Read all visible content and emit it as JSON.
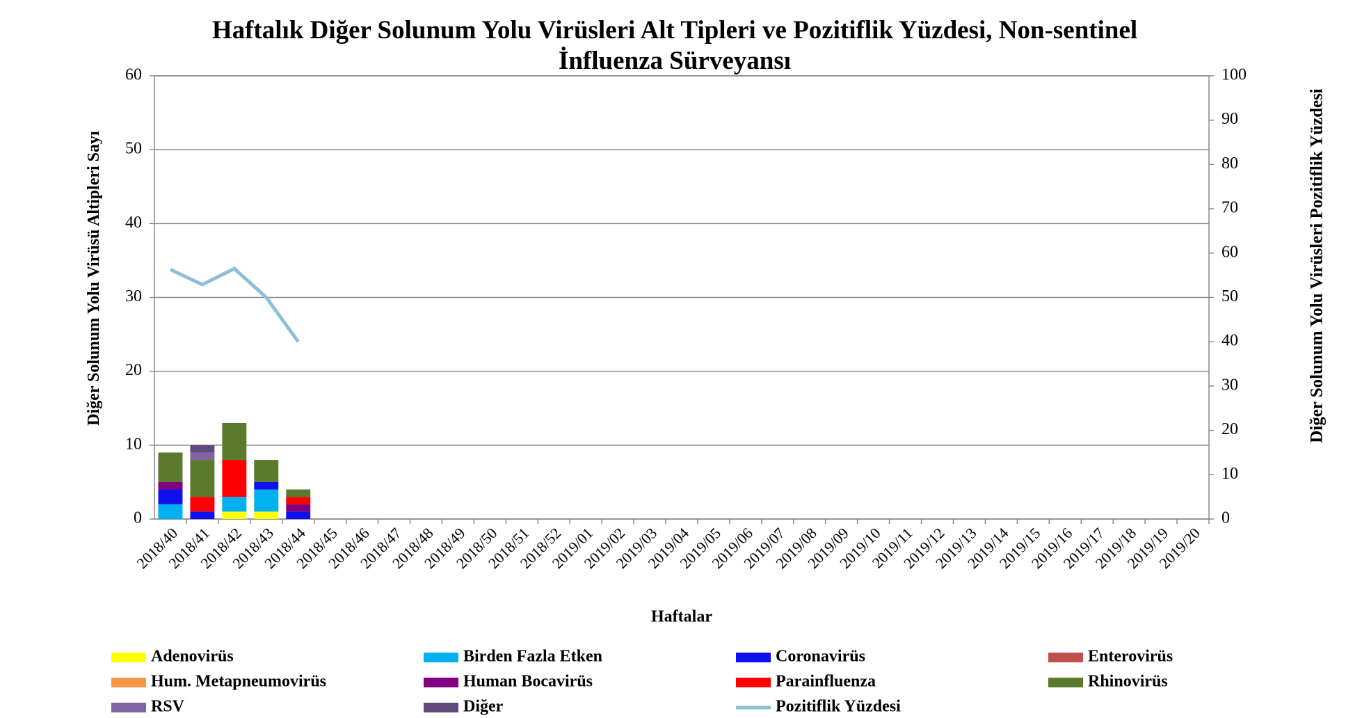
{
  "chart_data": {
    "type": "bar",
    "title": "Haftalık Diğer Solunum Yolu Virüsleri Alt Tipleri ve Pozitiflik Yüzdesi, Non-sentinel İnfluenza Sürveyansı",
    "xlabel": "Haftalar",
    "ylabel": "Diğer Solunum Yolu Virüsü Altipleri Sayı",
    "y2label": "Diğer Solunum Yolu Virüsleri Pozitiflik Yüzdesi",
    "stacked": true,
    "grid": true,
    "categories": [
      "2018/40",
      "2018/41",
      "2018/42",
      "2018/43",
      "2018/44",
      "2018/45",
      "2018/46",
      "2018/47",
      "2018/48",
      "2018/49",
      "2018/50",
      "2018/51",
      "2018/52",
      "2019/01",
      "2019/02",
      "2019/03",
      "2019/04",
      "2019/05",
      "2019/06",
      "2019/07",
      "2019/08",
      "2019/09",
      "2019/10",
      "2019/11",
      "2019/12",
      "2019/13",
      "2019/14",
      "2019/15",
      "2019/16",
      "2019/17",
      "2019/18",
      "2019/19",
      "2019/20"
    ],
    "ylim": [
      0,
      60
    ],
    "yticks": [
      0,
      10,
      20,
      30,
      40,
      50,
      60
    ],
    "y2lim": [
      0,
      100
    ],
    "y2ticks": [
      0,
      10,
      20,
      30,
      40,
      50,
      60,
      70,
      80,
      90,
      100
    ],
    "series": [
      {
        "name": "Adenovirüs",
        "color": "#ffff00",
        "values": [
          0,
          0,
          1,
          1,
          0,
          null,
          null,
          null,
          null,
          null,
          null,
          null,
          null,
          null,
          null,
          null,
          null,
          null,
          null,
          null,
          null,
          null,
          null,
          null,
          null,
          null,
          null,
          null,
          null,
          null,
          null,
          null,
          null
        ]
      },
      {
        "name": "Birden Fazla Etken",
        "color": "#00b0f0",
        "values": [
          2,
          0,
          2,
          3,
          0,
          null,
          null,
          null,
          null,
          null,
          null,
          null,
          null,
          null,
          null,
          null,
          null,
          null,
          null,
          null,
          null,
          null,
          null,
          null,
          null,
          null,
          null,
          null,
          null,
          null,
          null,
          null,
          null
        ]
      },
      {
        "name": "Coronavirüs",
        "color": "#1010ee",
        "values": [
          2,
          1,
          0,
          1,
          1,
          null,
          null,
          null,
          null,
          null,
          null,
          null,
          null,
          null,
          null,
          null,
          null,
          null,
          null,
          null,
          null,
          null,
          null,
          null,
          null,
          null,
          null,
          null,
          null,
          null,
          null,
          null,
          null
        ]
      },
      {
        "name": "Enterovirüs",
        "color": "#c0504d",
        "values": [
          0,
          0,
          0,
          0,
          0,
          null,
          null,
          null,
          null,
          null,
          null,
          null,
          null,
          null,
          null,
          null,
          null,
          null,
          null,
          null,
          null,
          null,
          null,
          null,
          null,
          null,
          null,
          null,
          null,
          null,
          null,
          null,
          null
        ]
      },
      {
        "name": "Hum. Metapneumovirüs",
        "color": "#f79646",
        "values": [
          0,
          0,
          0,
          0,
          0,
          null,
          null,
          null,
          null,
          null,
          null,
          null,
          null,
          null,
          null,
          null,
          null,
          null,
          null,
          null,
          null,
          null,
          null,
          null,
          null,
          null,
          null,
          null,
          null,
          null,
          null,
          null,
          null
        ]
      },
      {
        "name": "Human Bocavirüs",
        "color": "#800080",
        "values": [
          1,
          0,
          0,
          0,
          1,
          null,
          null,
          null,
          null,
          null,
          null,
          null,
          null,
          null,
          null,
          null,
          null,
          null,
          null,
          null,
          null,
          null,
          null,
          null,
          null,
          null,
          null,
          null,
          null,
          null,
          null,
          null,
          null
        ]
      },
      {
        "name": "Parainfluenza",
        "color": "#ff0000",
        "values": [
          0,
          2,
          5,
          0,
          1,
          null,
          null,
          null,
          null,
          null,
          null,
          null,
          null,
          null,
          null,
          null,
          null,
          null,
          null,
          null,
          null,
          null,
          null,
          null,
          null,
          null,
          null,
          null,
          null,
          null,
          null,
          null,
          null
        ]
      },
      {
        "name": "Rhinovirüs",
        "color": "#5a7a2e",
        "values": [
          4,
          5,
          5,
          3,
          1,
          null,
          null,
          null,
          null,
          null,
          null,
          null,
          null,
          null,
          null,
          null,
          null,
          null,
          null,
          null,
          null,
          null,
          null,
          null,
          null,
          null,
          null,
          null,
          null,
          null,
          null,
          null,
          null
        ]
      },
      {
        "name": "RSV",
        "color": "#8064a2",
        "values": [
          0,
          1,
          0,
          0,
          0,
          null,
          null,
          null,
          null,
          null,
          null,
          null,
          null,
          null,
          null,
          null,
          null,
          null,
          null,
          null,
          null,
          null,
          null,
          null,
          null,
          null,
          null,
          null,
          null,
          null,
          null,
          null,
          null
        ]
      },
      {
        "name": "Diğer",
        "color": "#604a7b",
        "values": [
          0,
          1,
          0,
          0,
          0,
          null,
          null,
          null,
          null,
          null,
          null,
          null,
          null,
          null,
          null,
          null,
          null,
          null,
          null,
          null,
          null,
          null,
          null,
          null,
          null,
          null,
          null,
          null,
          null,
          null,
          null,
          null,
          null
        ]
      },
      {
        "name": "Pozitiflik Yüzdesi",
        "color": "#8cc0d8",
        "type": "line",
        "axis": "y2",
        "values": [
          56.3,
          52.9,
          56.5,
          50,
          40,
          null,
          null,
          null,
          null,
          null,
          null,
          null,
          null,
          null,
          null,
          null,
          null,
          null,
          null,
          null,
          null,
          null,
          null,
          null,
          null,
          null,
          null,
          null,
          null,
          null,
          null,
          null,
          null
        ]
      }
    ]
  }
}
